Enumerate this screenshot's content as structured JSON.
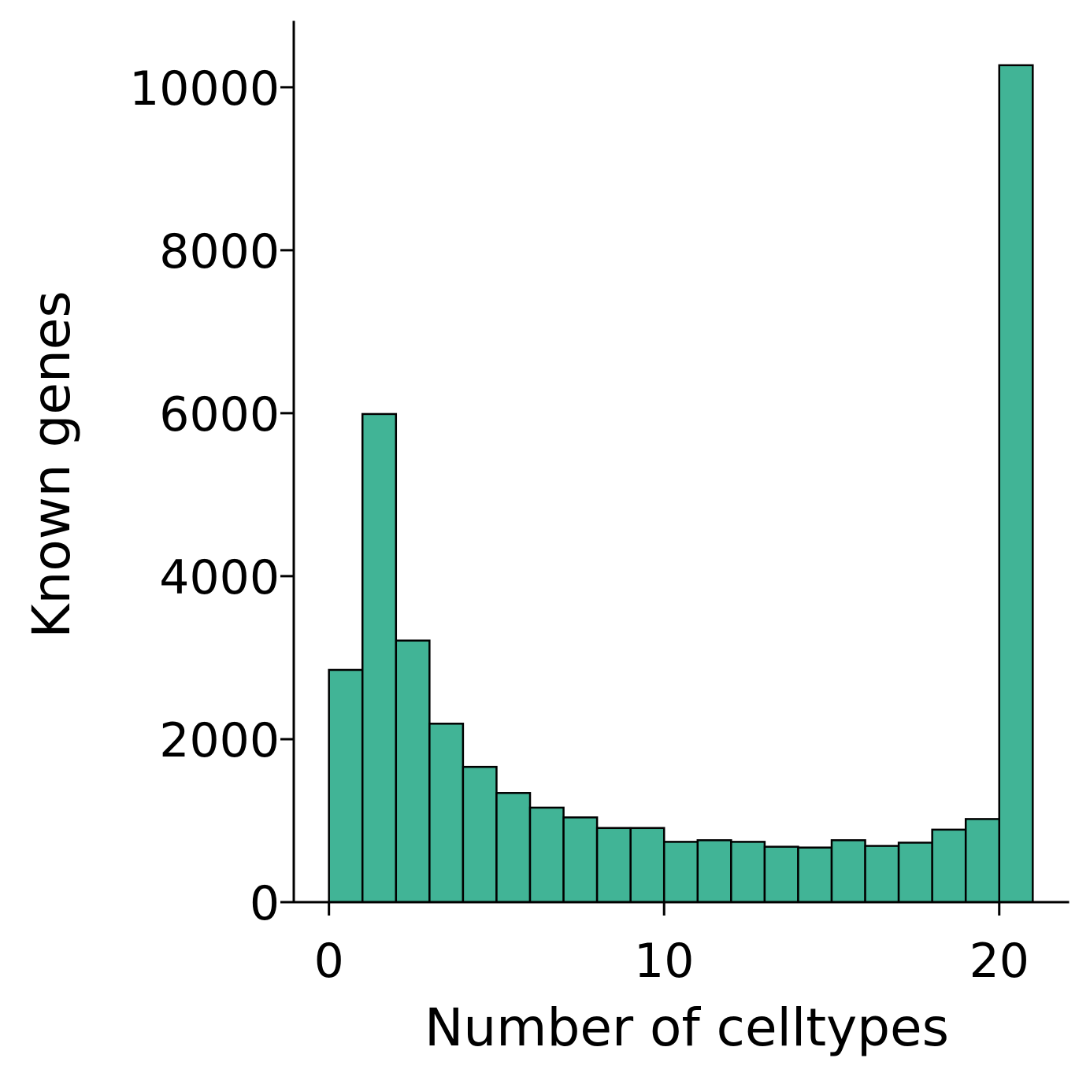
{
  "chart_data": {
    "type": "bar",
    "subtype": "histogram",
    "xlabel": "Number of celltypes",
    "ylabel": "Known genes",
    "xlim": [
      -1.05,
      22.05
    ],
    "ylim": [
      0,
      10800
    ],
    "x_ticks": [
      0,
      10,
      20
    ],
    "y_ticks": [
      0,
      2000,
      4000,
      6000,
      8000,
      10000
    ],
    "bin_edges": [
      0,
      1,
      2,
      3,
      4,
      5,
      6,
      7,
      8,
      9,
      10,
      11,
      12,
      13,
      14,
      15,
      16,
      17,
      18,
      19,
      20,
      21
    ],
    "values": [
      2850,
      5990,
      3210,
      2190,
      1660,
      1340,
      1160,
      1040,
      910,
      910,
      740,
      760,
      740,
      680,
      670,
      760,
      690,
      730,
      890,
      1020,
      10270
    ],
    "grid": false,
    "legend": "none",
    "colors": {
      "bar_fill": "#41b496",
      "bar_edge": "#000000",
      "axis": "#000000"
    }
  }
}
